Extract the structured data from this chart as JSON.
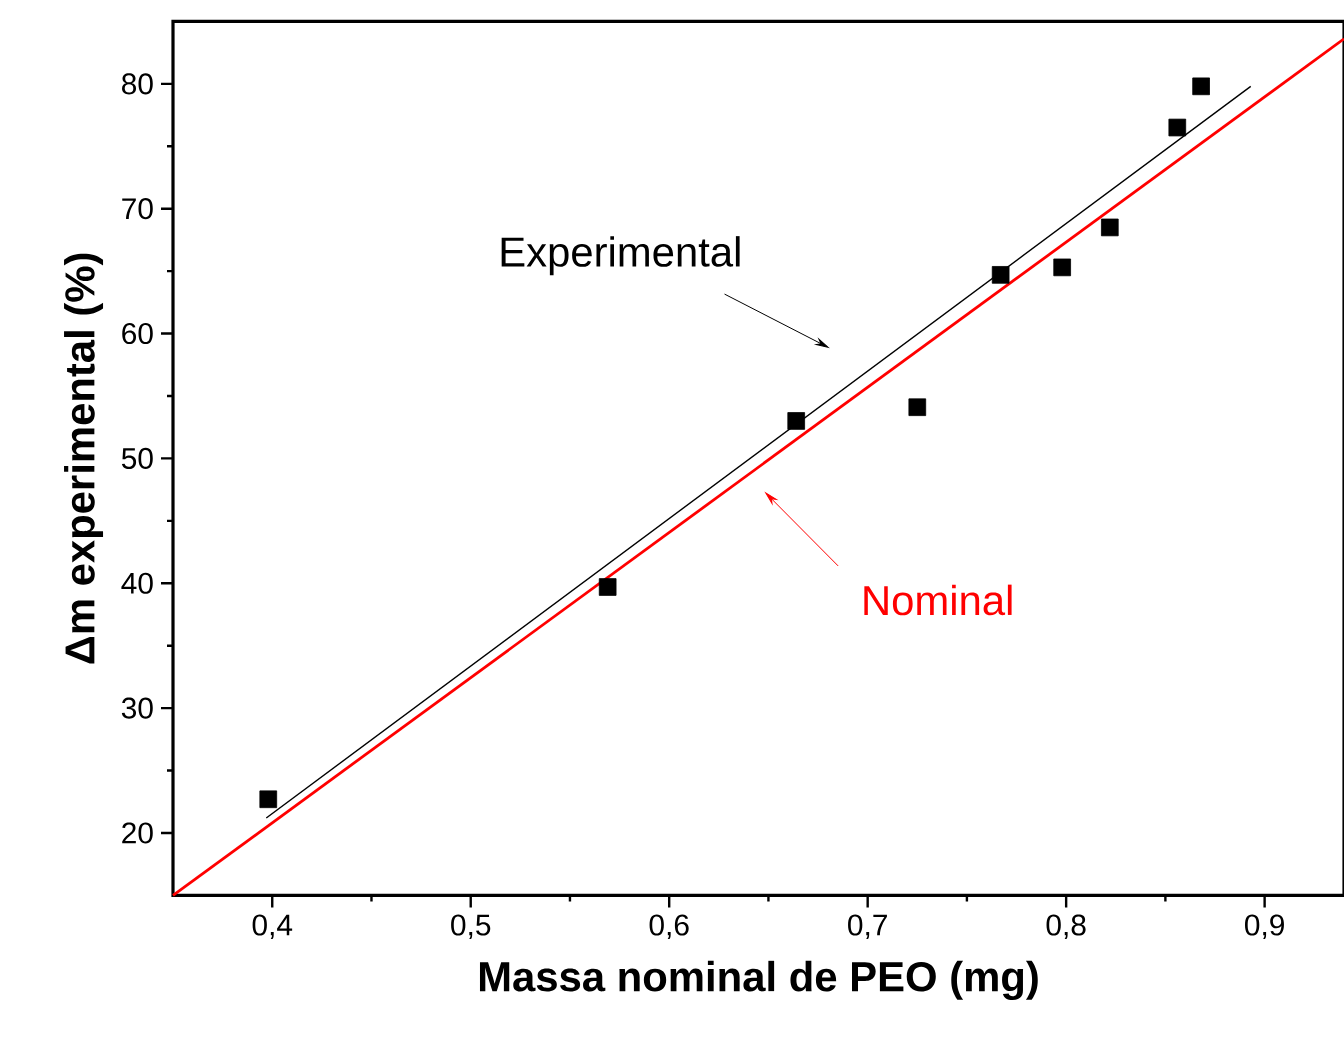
{
  "chart_data": {
    "type": "scatter",
    "xlabel": "Massa nominal de PEO (mg)",
    "ylabel": "Δm experimental (%)",
    "xlim": [
      0.35,
      0.94
    ],
    "ylim": [
      15,
      85
    ],
    "xticks": [
      {
        "value": 0.4,
        "label": "0,4"
      },
      {
        "value": 0.5,
        "label": "0,5"
      },
      {
        "value": 0.6,
        "label": "0,6"
      },
      {
        "value": 0.7,
        "label": "0,7"
      },
      {
        "value": 0.8,
        "label": "0,8"
      },
      {
        "value": 0.9,
        "label": "0,9"
      }
    ],
    "yticks": [
      20,
      30,
      40,
      50,
      60,
      70,
      80
    ],
    "grid": false,
    "series": [
      {
        "marker": "square",
        "color": "#000000",
        "x": [
          0.398,
          0.569,
          0.664,
          0.725,
          0.767,
          0.798,
          0.822,
          0.856,
          0.868
        ],
        "values": [
          22.7,
          39.7,
          53.0,
          54.1,
          64.7,
          65.3,
          68.5,
          76.5,
          79.8
        ]
      },
      {
        "type": "line",
        "marker": "none",
        "color": "#000000",
        "line_style": "solid",
        "x": [
          0.397,
          0.893
        ],
        "values": [
          21.2,
          79.8
        ]
      },
      {
        "type": "line",
        "marker": "none",
        "color": "#ff0000",
        "line_style": "solid",
        "x": [
          0.35,
          0.94
        ],
        "values": [
          15,
          83.6
        ]
      }
    ],
    "annotations": [
      "Experimental",
      "Nominal"
    ]
  }
}
